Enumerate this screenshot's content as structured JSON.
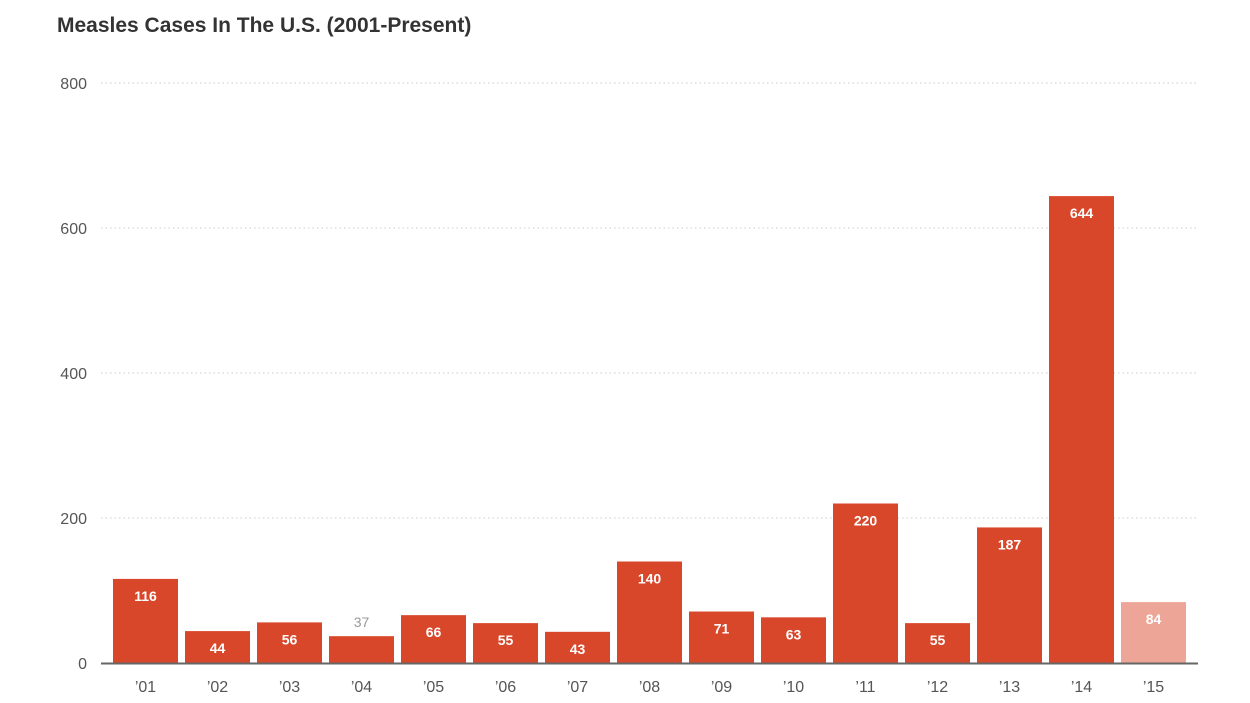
{
  "chart_data": {
    "type": "bar",
    "title": "Measles Cases In The U.S. (2001-Present)",
    "xlabel": "",
    "ylabel": "",
    "ylim": [
      0,
      800
    ],
    "yticks": [
      0,
      200,
      400,
      600,
      800
    ],
    "grid": true,
    "categories": [
      "’01",
      "’02",
      "’03",
      "’04",
      "’05",
      "’06",
      "’07",
      "’08",
      "’09",
      "’10",
      "’11",
      "’12",
      "’13",
      "’14",
      "’15"
    ],
    "values": [
      116,
      44,
      56,
      37,
      66,
      55,
      43,
      140,
      71,
      63,
      220,
      55,
      187,
      644,
      84
    ],
    "highlight_last_partial": true,
    "colors": {
      "bar": "#d9472b",
      "bar_partial": "#eca596",
      "outside_label": "#999999",
      "axis": "#666666",
      "grid": "#cccccc"
    }
  }
}
